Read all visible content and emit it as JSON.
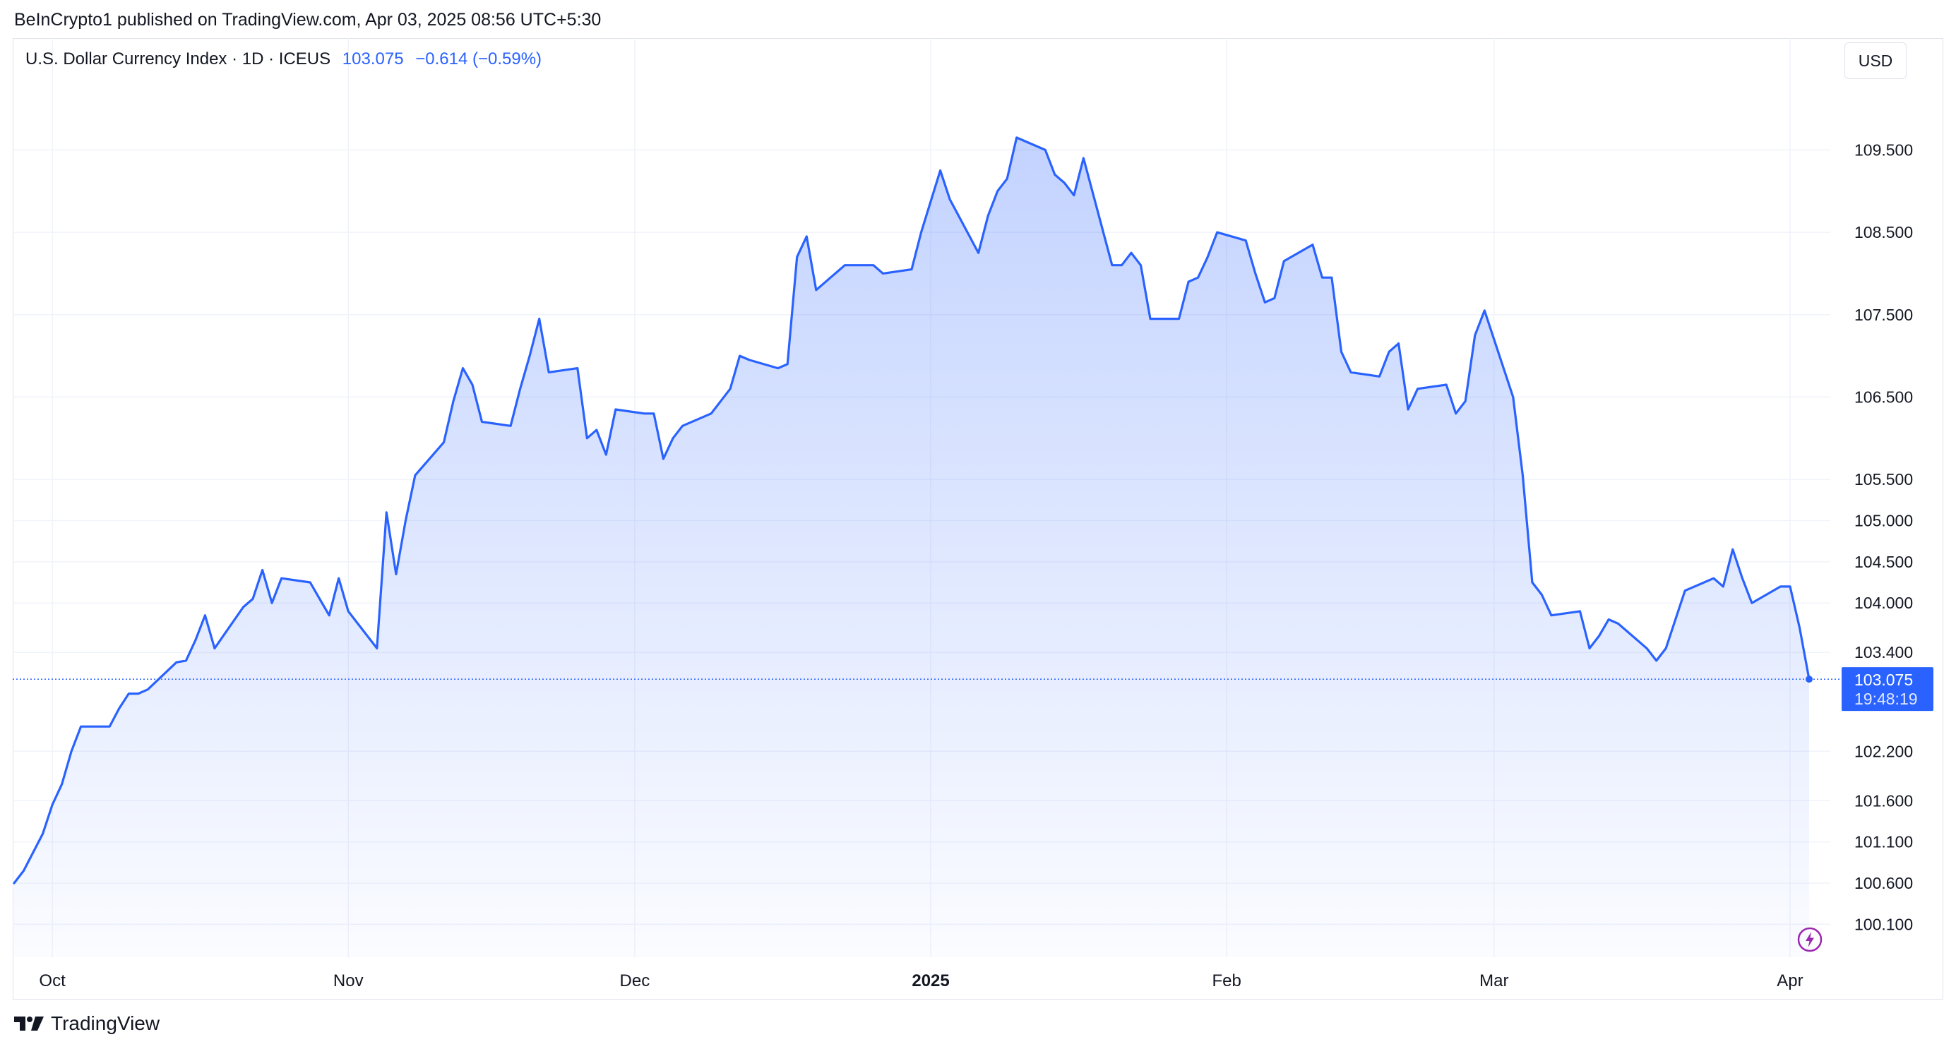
{
  "publisher": "BeInCrypto1 published on TradingView.com, Apr 03, 2025 08:56 UTC+5:30",
  "legend": {
    "symbol": "U.S. Dollar Currency Index · 1D · ICEUS",
    "last": "103.075",
    "change": "−0.614 (−0.59%)"
  },
  "currency_button": "USD",
  "last_price_label": {
    "price": "103.075",
    "countdown": "19:48:19"
  },
  "logo": {
    "text": "TradingView",
    "icon": "tradingview-logo-icon"
  },
  "alert_icon": "lightning-icon",
  "colors": {
    "line": "#2962ff",
    "grid": "#f0f3fa",
    "text": "#131722",
    "badge": "#2962ff",
    "bolt": "#9c27b0"
  },
  "chart_data": {
    "type": "area",
    "title": "U.S. Dollar Currency Index · 1D · ICEUS",
    "xlabel": "",
    "ylabel": "",
    "x_ticks": [
      {
        "x": "2024-10-01",
        "label": "Oct",
        "bold": false
      },
      {
        "x": "2024-11-01",
        "label": "Nov",
        "bold": false
      },
      {
        "x": "2024-12-01",
        "label": "Dec",
        "bold": false
      },
      {
        "x": "2025-01-01",
        "label": "2025",
        "bold": true
      },
      {
        "x": "2025-02-01",
        "label": "Feb",
        "bold": false
      },
      {
        "x": "2025-03-01",
        "label": "Mar",
        "bold": false
      },
      {
        "x": "2025-04-01",
        "label": "Apr",
        "bold": false
      }
    ],
    "y_ticks": [
      {
        "value": 109.5,
        "label": "109.500"
      },
      {
        "value": 108.5,
        "label": "108.500"
      },
      {
        "value": 107.5,
        "label": "107.500"
      },
      {
        "value": 106.5,
        "label": "106.500"
      },
      {
        "value": 105.5,
        "label": "105.500"
      },
      {
        "value": 105.0,
        "label": "105.000"
      },
      {
        "value": 104.5,
        "label": "104.500"
      },
      {
        "value": 104.0,
        "label": "104.000"
      },
      {
        "value": 103.4,
        "label": "103.400"
      },
      {
        "value": 102.2,
        "label": "102.200"
      },
      {
        "value": 101.6,
        "label": "101.600"
      },
      {
        "value": 101.1,
        "label": "101.100"
      },
      {
        "value": 100.6,
        "label": "100.600"
      },
      {
        "value": 100.1,
        "label": "100.100"
      }
    ],
    "xlim": [
      "2024-09-27",
      "2025-04-03"
    ],
    "ylim": [
      99.7,
      110.6
    ],
    "grid": true,
    "series": [
      {
        "points": [
          [
            "2024-09-27",
            100.6
          ],
          [
            "2024-09-28",
            100.75
          ],
          [
            "2024-09-30",
            101.2
          ],
          [
            "2024-10-01",
            101.55
          ],
          [
            "2024-10-02",
            101.8
          ],
          [
            "2024-10-03",
            102.2
          ],
          [
            "2024-10-04",
            102.5
          ],
          [
            "2024-10-07",
            102.5
          ],
          [
            "2024-10-08",
            102.72
          ],
          [
            "2024-10-09",
            102.9
          ],
          [
            "2024-10-10",
            102.9
          ],
          [
            "2024-10-11",
            102.95
          ],
          [
            "2024-10-14",
            103.28
          ],
          [
            "2024-10-15",
            103.3
          ],
          [
            "2024-10-16",
            103.55
          ],
          [
            "2024-10-17",
            103.85
          ],
          [
            "2024-10-18",
            103.45
          ],
          [
            "2024-10-21",
            103.95
          ],
          [
            "2024-10-22",
            104.05
          ],
          [
            "2024-10-23",
            104.4
          ],
          [
            "2024-10-24",
            104.0
          ],
          [
            "2024-10-25",
            104.3
          ],
          [
            "2024-10-28",
            104.25
          ],
          [
            "2024-10-29",
            104.05
          ],
          [
            "2024-10-30",
            103.85
          ],
          [
            "2024-10-31",
            104.3
          ],
          [
            "2024-11-01",
            103.9
          ],
          [
            "2024-11-04",
            103.45
          ],
          [
            "2024-11-05",
            105.1
          ],
          [
            "2024-11-06",
            104.35
          ],
          [
            "2024-11-07",
            105.0
          ],
          [
            "2024-11-08",
            105.55
          ],
          [
            "2024-11-11",
            105.95
          ],
          [
            "2024-11-12",
            106.45
          ],
          [
            "2024-11-13",
            106.85
          ],
          [
            "2024-11-14",
            106.65
          ],
          [
            "2024-11-15",
            106.2
          ],
          [
            "2024-11-18",
            106.15
          ],
          [
            "2024-11-19",
            106.6
          ],
          [
            "2024-11-20",
            107.0
          ],
          [
            "2024-11-21",
            107.45
          ],
          [
            "2024-11-22",
            106.8
          ],
          [
            "2024-11-25",
            106.85
          ],
          [
            "2024-11-26",
            106.0
          ],
          [
            "2024-11-27",
            106.1
          ],
          [
            "2024-11-28",
            105.8
          ],
          [
            "2024-11-29",
            106.35
          ],
          [
            "2024-12-02",
            106.3
          ],
          [
            "2024-12-03",
            106.3
          ],
          [
            "2024-12-04",
            105.75
          ],
          [
            "2024-12-05",
            106.0
          ],
          [
            "2024-12-06",
            106.15
          ],
          [
            "2024-12-09",
            106.3
          ],
          [
            "2024-12-10",
            106.45
          ],
          [
            "2024-12-11",
            106.6
          ],
          [
            "2024-12-12",
            107.0
          ],
          [
            "2024-12-13",
            106.95
          ],
          [
            "2024-12-16",
            106.85
          ],
          [
            "2024-12-17",
            106.9
          ],
          [
            "2024-12-18",
            108.2
          ],
          [
            "2024-12-19",
            108.45
          ],
          [
            "2024-12-20",
            107.8
          ],
          [
            "2024-12-23",
            108.1
          ],
          [
            "2024-12-24",
            108.1
          ],
          [
            "2024-12-26",
            108.1
          ],
          [
            "2024-12-27",
            108.0
          ],
          [
            "2024-12-30",
            108.05
          ],
          [
            "2024-12-31",
            108.5
          ],
          [
            "2025-01-02",
            109.25
          ],
          [
            "2025-01-03",
            108.9
          ],
          [
            "2025-01-06",
            108.25
          ],
          [
            "2025-01-07",
            108.7
          ],
          [
            "2025-01-08",
            109.0
          ],
          [
            "2025-01-09",
            109.15
          ],
          [
            "2025-01-10",
            109.65
          ],
          [
            "2025-01-13",
            109.5
          ],
          [
            "2025-01-14",
            109.2
          ],
          [
            "2025-01-15",
            109.1
          ],
          [
            "2025-01-16",
            108.95
          ],
          [
            "2025-01-17",
            109.4
          ],
          [
            "2025-01-20",
            108.1
          ],
          [
            "2025-01-21",
            108.1
          ],
          [
            "2025-01-22",
            108.25
          ],
          [
            "2025-01-23",
            108.1
          ],
          [
            "2025-01-24",
            107.45
          ],
          [
            "2025-01-27",
            107.45
          ],
          [
            "2025-01-28",
            107.9
          ],
          [
            "2025-01-29",
            107.95
          ],
          [
            "2025-01-30",
            108.2
          ],
          [
            "2025-01-31",
            108.5
          ],
          [
            "2025-02-03",
            108.4
          ],
          [
            "2025-02-04",
            108.0
          ],
          [
            "2025-02-05",
            107.65
          ],
          [
            "2025-02-06",
            107.7
          ],
          [
            "2025-02-07",
            108.15
          ],
          [
            "2025-02-10",
            108.35
          ],
          [
            "2025-02-11",
            107.95
          ],
          [
            "2025-02-12",
            107.95
          ],
          [
            "2025-02-13",
            107.05
          ],
          [
            "2025-02-14",
            106.8
          ],
          [
            "2025-02-17",
            106.75
          ],
          [
            "2025-02-18",
            107.05
          ],
          [
            "2025-02-19",
            107.15
          ],
          [
            "2025-02-20",
            106.35
          ],
          [
            "2025-02-21",
            106.6
          ],
          [
            "2025-02-24",
            106.65
          ],
          [
            "2025-02-25",
            106.3
          ],
          [
            "2025-02-26",
            106.45
          ],
          [
            "2025-02-27",
            107.25
          ],
          [
            "2025-02-28",
            107.55
          ],
          [
            "2025-03-03",
            106.5
          ],
          [
            "2025-03-04",
            105.55
          ],
          [
            "2025-03-05",
            104.25
          ],
          [
            "2025-03-06",
            104.1
          ],
          [
            "2025-03-07",
            103.85
          ],
          [
            "2025-03-10",
            103.9
          ],
          [
            "2025-03-11",
            103.45
          ],
          [
            "2025-03-12",
            103.6
          ],
          [
            "2025-03-13",
            103.8
          ],
          [
            "2025-03-14",
            103.75
          ],
          [
            "2025-03-17",
            103.45
          ],
          [
            "2025-03-18",
            103.3
          ],
          [
            "2025-03-19",
            103.45
          ],
          [
            "2025-03-20",
            103.8
          ],
          [
            "2025-03-21",
            104.15
          ],
          [
            "2025-03-24",
            104.3
          ],
          [
            "2025-03-25",
            104.2
          ],
          [
            "2025-03-26",
            104.65
          ],
          [
            "2025-03-27",
            104.3
          ],
          [
            "2025-03-28",
            104.0
          ],
          [
            "2025-03-31",
            104.2
          ],
          [
            "2025-04-01",
            104.2
          ],
          [
            "2025-04-02",
            103.7
          ],
          [
            "2025-04-03",
            103.075
          ]
        ]
      }
    ],
    "last_value": 103.075
  }
}
